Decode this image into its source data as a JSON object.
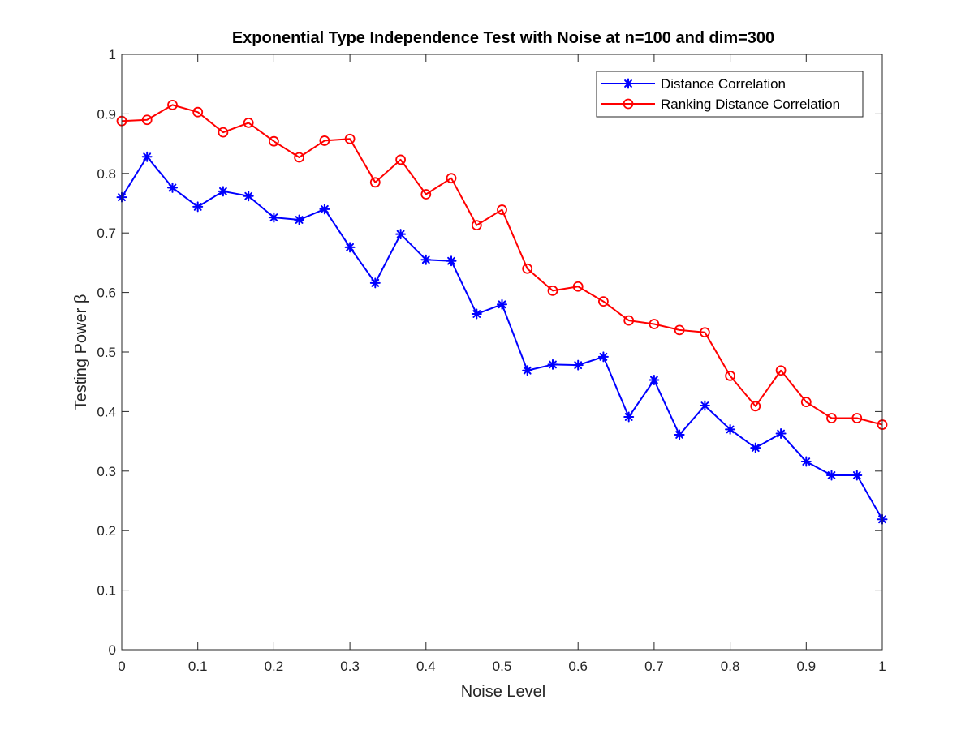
{
  "chart_data": {
    "type": "line",
    "title": "Exponential Type Independence Test with Noise at n=100 and dim=300",
    "xlabel": "Noise Level",
    "ylabel": "Testing Power β",
    "xlim": [
      0,
      1
    ],
    "ylim": [
      0,
      1
    ],
    "xticks": [
      "0",
      "0.1",
      "0.2",
      "0.3",
      "0.4",
      "0.5",
      "0.6",
      "0.7",
      "0.8",
      "0.9",
      "1"
    ],
    "yticks": [
      "0",
      "0.1",
      "0.2",
      "0.3",
      "0.4",
      "0.5",
      "0.6",
      "0.7",
      "0.8",
      "0.9",
      "1"
    ],
    "grid": false,
    "legend_position": "top-right",
    "x": [
      0,
      0.0333,
      0.0667,
      0.1,
      0.1333,
      0.1667,
      0.2,
      0.2333,
      0.2667,
      0.3,
      0.3333,
      0.3667,
      0.4,
      0.4333,
      0.4667,
      0.5,
      0.5333,
      0.5667,
      0.6,
      0.6333,
      0.6667,
      0.7,
      0.7333,
      0.7667,
      0.8,
      0.8333,
      0.8667,
      0.9,
      0.9333,
      0.9667,
      1
    ],
    "series": [
      {
        "name": "Distance Correlation",
        "color": "#0000ff",
        "marker": "asterisk",
        "values": [
          0.76,
          0.828,
          0.776,
          0.744,
          0.77,
          0.762,
          0.726,
          0.722,
          0.74,
          0.676,
          0.616,
          0.698,
          0.655,
          0.653,
          0.564,
          0.58,
          0.469,
          0.479,
          0.478,
          0.492,
          0.391,
          0.453,
          0.361,
          0.41,
          0.37,
          0.339,
          0.363,
          0.316,
          0.293,
          0.293,
          0.219
        ]
      },
      {
        "name": "Ranking Distance Correlation",
        "color": "#ff0000",
        "marker": "circle",
        "values": [
          0.888,
          0.89,
          0.915,
          0.903,
          0.869,
          0.885,
          0.854,
          0.827,
          0.855,
          0.858,
          0.785,
          0.823,
          0.765,
          0.792,
          0.713,
          0.739,
          0.64,
          0.603,
          0.61,
          0.585,
          0.553,
          0.547,
          0.537,
          0.533,
          0.46,
          0.409,
          0.469,
          0.416,
          0.389,
          0.389,
          0.378
        ]
      }
    ]
  }
}
